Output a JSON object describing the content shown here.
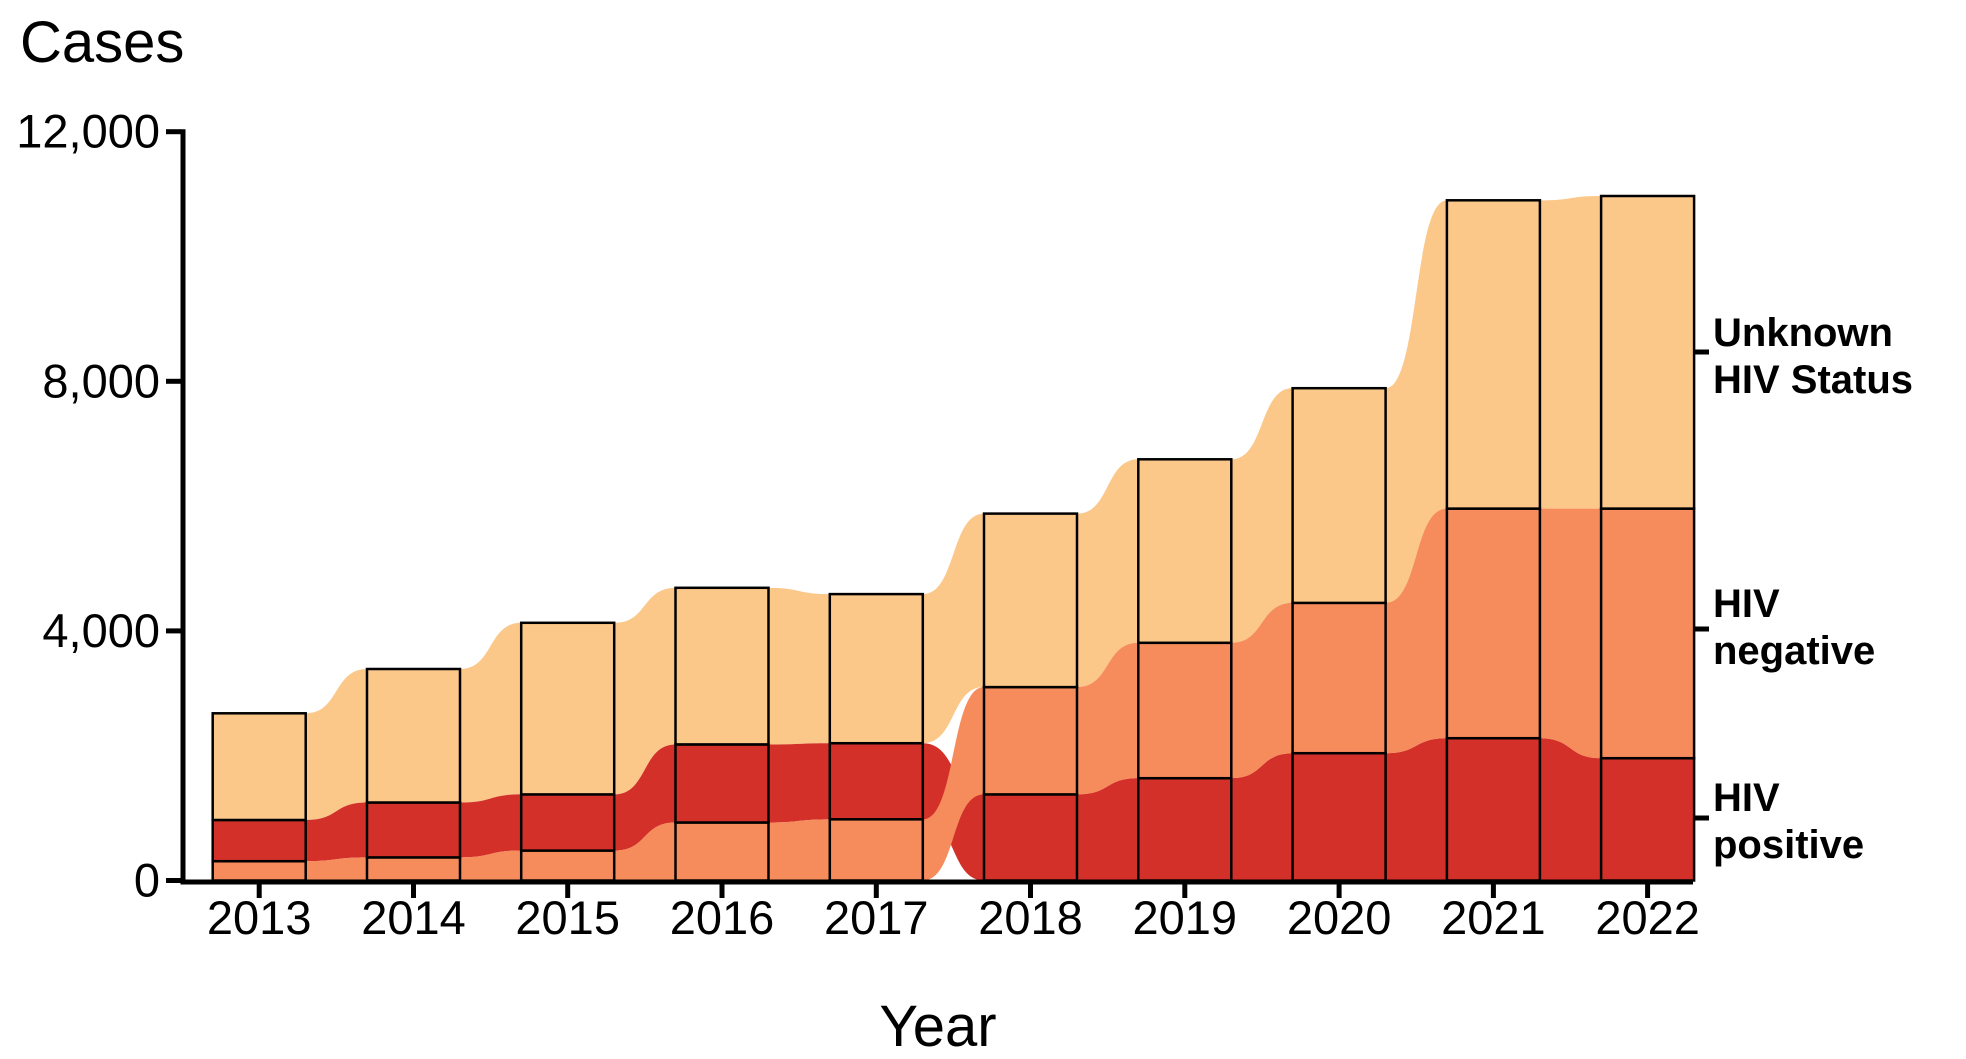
{
  "title": "Cases",
  "x_axis": {
    "title": "Year"
  },
  "y_axis": {
    "tick_labels": [
      "0",
      "4,000",
      "8,000",
      "12,000"
    ],
    "tick_values": [
      0,
      4000,
      8000,
      12000
    ],
    "max": 12000
  },
  "annotations": {
    "unknown_line1": "Unknown",
    "unknown_line2": "HIV Status",
    "negative_line1": "HIV",
    "negative_line2": "negative",
    "positive_line1": "HIV",
    "positive_line2": "positive"
  },
  "colors": {
    "hiv_positive": "#D3302A",
    "hiv_negative": "#F68B5C",
    "unknown_hiv_status": "#FBC88A",
    "outline": "#000000",
    "axis": "#000000"
  },
  "chart_data": {
    "type": "bar",
    "subtype": "stacked-bars-with-flow-ribbons",
    "title": "Cases",
    "xlabel": "Year",
    "ylabel": "Cases",
    "ylim": [
      0,
      12000
    ],
    "grid": false,
    "legend_position": "right-outside-labels",
    "categories": [
      "2013",
      "2014",
      "2015",
      "2016",
      "2017",
      "2018",
      "2019",
      "2020",
      "2021",
      "2022"
    ],
    "series": [
      {
        "key": "pos",
        "name": "HIV positive",
        "values": [
          660,
          880,
          900,
          1250,
          1220,
          1380,
          1640,
          2040,
          2280,
          1960
        ]
      },
      {
        "key": "neg",
        "name": "HIV negative",
        "values": [
          310,
          370,
          480,
          930,
          980,
          1720,
          2170,
          2410,
          3680,
          4000
        ]
      },
      {
        "key": "unk",
        "name": "Unknown HIV Status",
        "values": [
          1710,
          2140,
          2750,
          2510,
          2390,
          2780,
          2940,
          3440,
          4940,
          5010
        ]
      }
    ],
    "totals": [
      2680,
      3390,
      4130,
      4690,
      4590,
      5880,
      6750,
      7890,
      10900,
      10970
    ],
    "stack_order_bottom_to_top": {
      "2013_to_2017": [
        "HIV negative",
        "HIV positive",
        "Unknown HIV Status"
      ],
      "2018_to_2022": [
        "HIV positive",
        "HIV negative",
        "Unknown HIV Status"
      ]
    }
  }
}
